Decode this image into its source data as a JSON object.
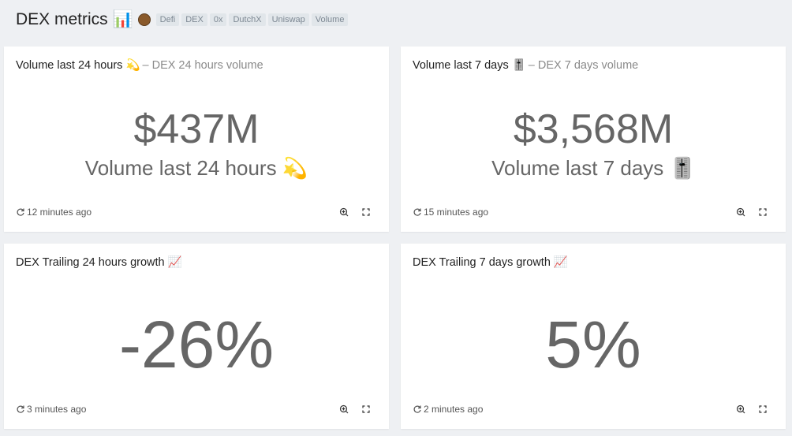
{
  "header": {
    "title": "DEX metrics 📊",
    "tags": [
      "Defi",
      "DEX",
      "0x",
      "DutchX",
      "Uniswap",
      "Volume"
    ]
  },
  "cards": [
    {
      "title": "Volume last 24 hours 💫",
      "subtitle": "– DEX 24 hours volume",
      "value": "$437M",
      "label": "Volume last 24 hours 💫",
      "updated": "12 minutes ago"
    },
    {
      "title": "Volume last 7 days 🎚️",
      "subtitle": "– DEX 7 days volume",
      "value": "$3,568M",
      "label": "Volume last 7 days 🎚️",
      "updated": "15 minutes ago"
    },
    {
      "title": "DEX Trailing 24 hours growth 📈",
      "value": "-26%",
      "updated": "3 minutes ago"
    },
    {
      "title": "DEX Trailing 7 days growth 📈",
      "value": "5%",
      "updated": "2 minutes ago"
    }
  ]
}
